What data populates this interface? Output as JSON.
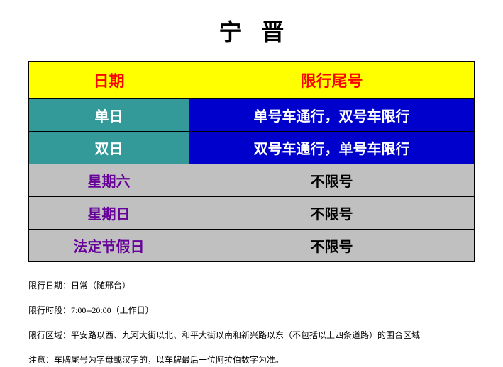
{
  "title": "宁晋",
  "table": {
    "headers": [
      "日期",
      "限行尾号"
    ],
    "rows": [
      {
        "col1": {
          "text": "单日",
          "cellClass": "teal-cell"
        },
        "col2": {
          "text": "单号车通行，双号车限行",
          "cellClass": "blue-cell"
        }
      },
      {
        "col1": {
          "text": "双日",
          "cellClass": "teal-cell"
        },
        "col2": {
          "text": "双号车通行，单号车限行",
          "cellClass": "blue-cell"
        }
      },
      {
        "col1": {
          "text": "星期六",
          "cellClass": "gray-purple"
        },
        "col2": {
          "text": "不限号",
          "cellClass": "gray-black"
        }
      },
      {
        "col1": {
          "text": "星期日",
          "cellClass": "gray-purple"
        },
        "col2": {
          "text": "不限号",
          "cellClass": "gray-black"
        }
      },
      {
        "col1": {
          "text": "法定节假日",
          "cellClass": "gray-purple"
        },
        "col2": {
          "text": "不限号",
          "cellClass": "gray-black"
        }
      }
    ]
  },
  "notes": [
    "限行日期：日常（随邢台）",
    "限行时段：7:00--20:00（工作日）",
    "限行区域：平安路以西、九河大街以北、和平大街以南和新兴路以东（不包括以上四条道路）的围合区域",
    "注意：车牌尾号为字母或汉字的，以车牌最后一位阿拉伯数字为准。"
  ],
  "styling": {
    "colors": {
      "header_bg": "#ffff00",
      "header_text": "#ff0000",
      "teal_bg": "#339999",
      "blue_bg": "#0000cc",
      "gray_bg": "#c0c0c0",
      "purple_text": "#660099",
      "white_text": "#ffffff",
      "black_text": "#000000",
      "border": "#000000",
      "background": "#ffffff"
    },
    "fonts": {
      "title_size": 32,
      "header_size": 22,
      "cell_size": 20,
      "note_size": 12
    },
    "layout": {
      "col1_width_pct": 36,
      "col2_width_pct": 64
    }
  }
}
